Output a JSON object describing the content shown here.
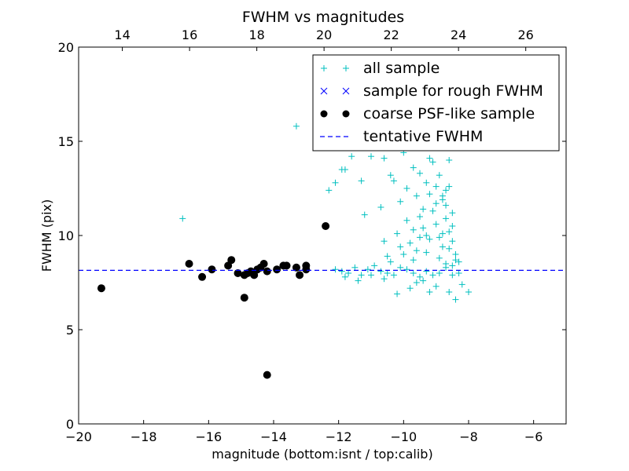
{
  "chart_data": {
    "type": "scatter",
    "title": "FWHM vs magnitudes",
    "xlabel": "magnitude (bottom:isnt / top:calib)",
    "ylabel": "FWHM (pix)",
    "xlim": [
      -20,
      -5
    ],
    "ylim": [
      0,
      20
    ],
    "top_xlim": [
      12.7,
      27.2
    ],
    "x_ticks": [
      -20,
      -18,
      -16,
      -14,
      -12,
      -10,
      -8,
      -6
    ],
    "x_tick_labels": [
      "−20",
      "−18",
      "−16",
      "−14",
      "−12",
      "−10",
      "−8",
      "−6"
    ],
    "top_ticks": [
      14,
      16,
      18,
      20,
      22,
      24,
      26
    ],
    "top_tick_labels": [
      "14",
      "16",
      "18",
      "20",
      "22",
      "24",
      "26"
    ],
    "y_ticks": [
      0,
      5,
      10,
      15,
      20
    ],
    "y_tick_labels": [
      "0",
      "5",
      "10",
      "15",
      "20"
    ],
    "grid": false,
    "legend_position": "top-right",
    "series": [
      {
        "name": "all sample",
        "marker": "plus",
        "color": "#00bfbf",
        "points": [
          [
            -16.8,
            10.9
          ],
          [
            -13.3,
            15.8
          ],
          [
            -12.3,
            12.4
          ],
          [
            -12.1,
            12.8
          ],
          [
            -11.9,
            13.5
          ],
          [
            -11.8,
            13.5
          ],
          [
            -11.6,
            14.2
          ],
          [
            -11.3,
            12.9
          ],
          [
            -11.2,
            11.1
          ],
          [
            -11.0,
            14.2
          ],
          [
            -10.7,
            11.5
          ],
          [
            -10.6,
            14.1
          ],
          [
            -10.4,
            13.2
          ],
          [
            -10.3,
            12.9
          ],
          [
            -10.1,
            11.8
          ],
          [
            -10.0,
            14.4
          ],
          [
            -9.9,
            12.5
          ],
          [
            -9.7,
            13.6
          ],
          [
            -9.6,
            12.1
          ],
          [
            -9.5,
            13.3
          ],
          [
            -9.4,
            11.4
          ],
          [
            -9.3,
            12.8
          ],
          [
            -9.2,
            14.1
          ],
          [
            -9.1,
            13.9
          ],
          [
            -9.0,
            12.6
          ],
          [
            -8.9,
            13.2
          ],
          [
            -8.8,
            11.9
          ],
          [
            -8.7,
            12.4
          ],
          [
            -8.6,
            14.0
          ],
          [
            -8.5,
            11.2
          ],
          [
            -12.1,
            8.2
          ],
          [
            -11.9,
            8.1
          ],
          [
            -11.7,
            8.0
          ],
          [
            -11.5,
            8.3
          ],
          [
            -11.3,
            7.9
          ],
          [
            -11.1,
            8.2
          ],
          [
            -10.9,
            8.4
          ],
          [
            -10.7,
            8.1
          ],
          [
            -10.5,
            8.0
          ],
          [
            -10.3,
            7.9
          ],
          [
            -10.1,
            8.3
          ],
          [
            -9.9,
            8.2
          ],
          [
            -9.7,
            8.0
          ],
          [
            -9.5,
            7.8
          ],
          [
            -9.3,
            8.1
          ],
          [
            -9.1,
            7.9
          ],
          [
            -8.9,
            8.0
          ],
          [
            -8.7,
            8.3
          ],
          [
            -8.5,
            7.9
          ],
          [
            -8.3,
            8.0
          ],
          [
            -11.8,
            7.8
          ],
          [
            -11.4,
            7.6
          ],
          [
            -11.0,
            7.9
          ],
          [
            -10.6,
            7.7
          ],
          [
            -10.2,
            6.9
          ],
          [
            -9.8,
            7.2
          ],
          [
            -9.4,
            7.6
          ],
          [
            -9.0,
            7.3
          ],
          [
            -8.6,
            7.0
          ],
          [
            -8.2,
            7.4
          ],
          [
            -8.0,
            7.0
          ],
          [
            -8.4,
            6.6
          ],
          [
            -9.2,
            7.0
          ],
          [
            -9.6,
            7.5
          ],
          [
            -10.4,
            8.6
          ],
          [
            -10.0,
            9.0
          ],
          [
            -9.8,
            9.6
          ],
          [
            -9.6,
            9.2
          ],
          [
            -9.4,
            10.4
          ],
          [
            -9.2,
            9.8
          ],
          [
            -9.0,
            10.6
          ],
          [
            -8.8,
            9.4
          ],
          [
            -8.6,
            10.2
          ],
          [
            -8.4,
            9.0
          ],
          [
            -9.9,
            10.8
          ],
          [
            -9.5,
            11.0
          ],
          [
            -9.1,
            11.3
          ],
          [
            -8.7,
            10.9
          ],
          [
            -8.5,
            9.7
          ],
          [
            -8.9,
            8.8
          ],
          [
            -9.3,
            9.1
          ],
          [
            -9.7,
            8.7
          ],
          [
            -10.1,
            9.4
          ],
          [
            -10.5,
            8.9
          ],
          [
            -8.8,
            12.1
          ],
          [
            -8.6,
            12.6
          ],
          [
            -8.7,
            11.6
          ],
          [
            -8.5,
            10.5
          ],
          [
            -8.6,
            9.3
          ],
          [
            -8.4,
            8.7
          ],
          [
            -8.8,
            10.1
          ],
          [
            -9.0,
            11.7
          ],
          [
            -9.2,
            12.2
          ],
          [
            -8.9,
            9.9
          ],
          [
            -8.7,
            8.5
          ],
          [
            -8.5,
            8.4
          ],
          [
            -8.3,
            8.6
          ],
          [
            -9.3,
            10.0
          ],
          [
            -9.5,
            9.9
          ],
          [
            -9.7,
            10.3
          ],
          [
            -10.2,
            10.1
          ],
          [
            -10.6,
            9.7
          ]
        ]
      },
      {
        "name": "sample for rough FWHM",
        "marker": "x",
        "color": "#0000ff",
        "points": []
      },
      {
        "name": "coarse PSF-like sample",
        "marker": "circle",
        "color": "#000000",
        "points": [
          [
            -19.3,
            7.2
          ],
          [
            -16.6,
            8.5
          ],
          [
            -16.2,
            7.8
          ],
          [
            -15.9,
            8.2
          ],
          [
            -15.4,
            8.4
          ],
          [
            -15.3,
            8.7
          ],
          [
            -15.1,
            8.0
          ],
          [
            -14.9,
            7.9
          ],
          [
            -14.8,
            8.0
          ],
          [
            -14.7,
            8.1
          ],
          [
            -14.6,
            7.9
          ],
          [
            -14.5,
            8.2
          ],
          [
            -14.4,
            8.3
          ],
          [
            -14.3,
            8.5
          ],
          [
            -14.2,
            8.1
          ],
          [
            -14.9,
            6.7
          ],
          [
            -14.2,
            2.6
          ],
          [
            -13.9,
            8.2
          ],
          [
            -13.7,
            8.4
          ],
          [
            -13.6,
            8.4
          ],
          [
            -13.3,
            8.3
          ],
          [
            -13.2,
            7.9
          ],
          [
            -13.0,
            8.4
          ],
          [
            -13.0,
            8.2
          ],
          [
            -12.4,
            10.5
          ]
        ]
      },
      {
        "name": "tentative FWHM",
        "marker": "dashed-line",
        "color": "#0000ff",
        "value": 8.15
      }
    ]
  }
}
